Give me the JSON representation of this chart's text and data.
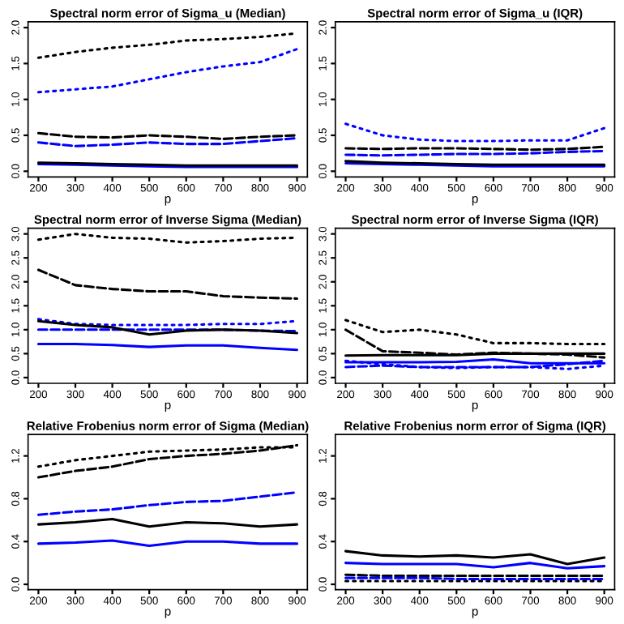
{
  "chart_data": [
    {
      "type": "line",
      "title": "Spectral norm error of Sigma_u (Median)",
      "xlabel": "p",
      "x": [
        200,
        300,
        400,
        500,
        600,
        700,
        800,
        900
      ],
      "xlim": [
        172,
        928
      ],
      "xticks": [
        200,
        300,
        400,
        500,
        600,
        700,
        800,
        900
      ],
      "ylim": [
        -0.08,
        2.08
      ],
      "yticks": [
        {
          "value": 0,
          "label": "0.0"
        },
        0.5,
        {
          "value": 1,
          "label": "1.0"
        },
        1.5,
        {
          "value": 2,
          "label": "2.0"
        }
      ],
      "series": [
        {
          "color": "#000000",
          "line_style": "dotted",
          "values": [
            1.58,
            1.66,
            1.72,
            1.76,
            1.82,
            1.84,
            1.87,
            1.92
          ]
        },
        {
          "color": "#0000ff",
          "line_style": "dotted",
          "values": [
            1.1,
            1.14,
            1.18,
            1.28,
            1.38,
            1.46,
            1.52,
            1.7
          ]
        },
        {
          "color": "#000000",
          "line_style": "dashed",
          "values": [
            0.53,
            0.48,
            0.47,
            0.5,
            0.48,
            0.45,
            0.48,
            0.5
          ]
        },
        {
          "color": "#0000ff",
          "line_style": "dashed",
          "values": [
            0.4,
            0.35,
            0.37,
            0.4,
            0.38,
            0.38,
            0.42,
            0.46
          ]
        },
        {
          "color": "#0000ff",
          "line_style": "solid",
          "values": [
            0.1,
            0.09,
            0.08,
            0.07,
            0.06,
            0.06,
            0.06,
            0.06
          ]
        },
        {
          "color": "#000000",
          "line_style": "solid",
          "values": [
            0.12,
            0.11,
            0.1,
            0.09,
            0.08,
            0.08,
            0.08,
            0.08
          ]
        }
      ]
    },
    {
      "type": "line",
      "title": "Spectral norm error of Sigma_u (IQR)",
      "xlabel": "p",
      "x": [
        200,
        300,
        400,
        500,
        600,
        700,
        800,
        900
      ],
      "xlim": [
        172,
        928
      ],
      "xticks": [
        200,
        300,
        400,
        500,
        600,
        700,
        800,
        900
      ],
      "ylim": [
        -0.08,
        2.08
      ],
      "yticks": [
        {
          "value": 0,
          "label": "0.0"
        },
        0.5,
        {
          "value": 1,
          "label": "1.0"
        },
        1.5,
        {
          "value": 2,
          "label": "2.0"
        }
      ],
      "series": [
        {
          "color": "#0000ff",
          "line_style": "dotted",
          "values": [
            0.66,
            0.5,
            0.44,
            0.42,
            0.42,
            0.43,
            0.43,
            0.6
          ]
        },
        {
          "color": "#000000",
          "line_style": "dashed",
          "values": [
            0.32,
            0.31,
            0.32,
            0.32,
            0.31,
            0.3,
            0.31,
            0.34
          ]
        },
        {
          "color": "#0000ff",
          "line_style": "dashed",
          "values": [
            0.23,
            0.22,
            0.23,
            0.24,
            0.24,
            0.25,
            0.27,
            0.28
          ]
        },
        {
          "color": "#0000ff",
          "line_style": "solid",
          "values": [
            0.11,
            0.1,
            0.09,
            0.08,
            0.07,
            0.07,
            0.07,
            0.07
          ]
        },
        {
          "color": "#000000",
          "line_style": "solid",
          "values": [
            0.14,
            0.12,
            0.11,
            0.1,
            0.09,
            0.09,
            0.09,
            0.09
          ]
        }
      ]
    },
    {
      "type": "line",
      "title": "Spectral norm error of Inverse Sigma (Median)",
      "xlabel": "p",
      "x": [
        200,
        300,
        400,
        500,
        600,
        700,
        800,
        900
      ],
      "xlim": [
        172,
        928
      ],
      "xticks": [
        200,
        300,
        400,
        500,
        600,
        700,
        800,
        900
      ],
      "ylim": [
        -0.12,
        3.12
      ],
      "yticks": [
        {
          "value": 0,
          "label": "0.0"
        },
        0.5,
        {
          "value": 1,
          "label": "1.0"
        },
        1.5,
        {
          "value": 2,
          "label": "2.0"
        },
        2.5,
        {
          "value": 3,
          "label": "3.0"
        }
      ],
      "series": [
        {
          "color": "#000000",
          "line_style": "dotted",
          "values": [
            2.88,
            3.0,
            2.92,
            2.9,
            2.82,
            2.85,
            2.9,
            2.92
          ]
        },
        {
          "color": "#0000ff",
          "line_style": "dotted",
          "values": [
            1.22,
            1.12,
            1.1,
            1.1,
            1.1,
            1.12,
            1.12,
            1.18
          ]
        },
        {
          "color": "#000000",
          "line_style": "dashed",
          "values": [
            2.25,
            1.93,
            1.85,
            1.8,
            1.8,
            1.7,
            1.67,
            1.65
          ]
        },
        {
          "color": "#0000ff",
          "line_style": "dashed",
          "values": [
            1.0,
            1.0,
            1.0,
            1.0,
            1.0,
            1.0,
            0.98,
            0.97
          ]
        },
        {
          "color": "#000000",
          "line_style": "solid",
          "values": [
            1.18,
            1.1,
            1.05,
            0.9,
            0.98,
            1.0,
            0.98,
            0.93
          ]
        },
        {
          "color": "#0000ff",
          "line_style": "solid",
          "values": [
            0.7,
            0.7,
            0.68,
            0.64,
            0.67,
            0.67,
            0.62,
            0.58
          ]
        }
      ]
    },
    {
      "type": "line",
      "title": "Spectral norm error of Inverse Sigma (IQR)",
      "xlabel": "p",
      "x": [
        200,
        300,
        400,
        500,
        600,
        700,
        800,
        900
      ],
      "xlim": [
        172,
        928
      ],
      "xticks": [
        200,
        300,
        400,
        500,
        600,
        700,
        800,
        900
      ],
      "ylim": [
        -0.12,
        3.12
      ],
      "yticks": [
        {
          "value": 0,
          "label": "0.0"
        },
        0.5,
        {
          "value": 1,
          "label": "1.0"
        },
        1.5,
        {
          "value": 2,
          "label": "2.0"
        },
        2.5,
        {
          "value": 3,
          "label": "3.0"
        }
      ],
      "series": [
        {
          "color": "#000000",
          "line_style": "dotted",
          "values": [
            1.2,
            0.95,
            1.0,
            0.9,
            0.72,
            0.72,
            0.7,
            0.7
          ]
        },
        {
          "color": "#0000ff",
          "line_style": "dotted",
          "values": [
            0.35,
            0.28,
            0.22,
            0.2,
            0.22,
            0.22,
            0.18,
            0.25
          ]
        },
        {
          "color": "#000000",
          "line_style": "dashed",
          "values": [
            1.0,
            0.55,
            0.52,
            0.48,
            0.52,
            0.5,
            0.48,
            0.42
          ]
        },
        {
          "color": "#0000ff",
          "line_style": "dashed",
          "values": [
            0.22,
            0.25,
            0.22,
            0.22,
            0.22,
            0.22,
            0.28,
            0.35
          ]
        },
        {
          "color": "#000000",
          "line_style": "solid",
          "values": [
            0.46,
            0.47,
            0.47,
            0.47,
            0.5,
            0.5,
            0.5,
            0.5
          ]
        },
        {
          "color": "#0000ff",
          "line_style": "solid",
          "values": [
            0.32,
            0.32,
            0.32,
            0.33,
            0.38,
            0.3,
            0.3,
            0.3
          ]
        }
      ]
    },
    {
      "type": "line",
      "title": "Relative Frobenius norm error of Sigma (Median)",
      "xlabel": "p",
      "x": [
        200,
        300,
        400,
        500,
        600,
        700,
        800,
        900
      ],
      "xlim": [
        172,
        928
      ],
      "xticks": [
        200,
        300,
        400,
        500,
        600,
        700,
        800,
        900
      ],
      "ylim": [
        -0.05,
        1.4
      ],
      "yticks": [
        {
          "value": 0,
          "label": "0.0"
        },
        0.4,
        0.8,
        1.2
      ],
      "series": [
        {
          "color": "#000000",
          "line_style": "dotted",
          "values": [
            1.1,
            1.16,
            1.2,
            1.24,
            1.25,
            1.26,
            1.28,
            1.28
          ]
        },
        {
          "color": "#000000",
          "line_style": "dashed",
          "values": [
            1.0,
            1.06,
            1.1,
            1.17,
            1.2,
            1.22,
            1.25,
            1.3
          ]
        },
        {
          "color": "#0000ff",
          "line_style": "dashed",
          "values": [
            0.65,
            0.68,
            0.7,
            0.74,
            0.77,
            0.78,
            0.82,
            0.86
          ]
        },
        {
          "color": "#000000",
          "line_style": "solid",
          "values": [
            0.56,
            0.58,
            0.61,
            0.54,
            0.58,
            0.57,
            0.54,
            0.56
          ]
        },
        {
          "color": "#0000ff",
          "line_style": "solid",
          "values": [
            0.38,
            0.39,
            0.41,
            0.36,
            0.4,
            0.4,
            0.38,
            0.38
          ]
        }
      ]
    },
    {
      "type": "line",
      "title": "Relative Frobenius norm error of Sigma (IQR)",
      "xlabel": "p",
      "x": [
        200,
        300,
        400,
        500,
        600,
        700,
        800,
        900
      ],
      "xlim": [
        172,
        928
      ],
      "xticks": [
        200,
        300,
        400,
        500,
        600,
        700,
        800,
        900
      ],
      "ylim": [
        -0.05,
        1.4
      ],
      "yticks": [
        {
          "value": 0,
          "label": "0.0"
        },
        0.4,
        0.8,
        1.2
      ],
      "series": [
        {
          "color": "#000000",
          "line_style": "dotted",
          "values": [
            0.03,
            0.03,
            0.03,
            0.03,
            0.03,
            0.03,
            0.03,
            0.03
          ]
        },
        {
          "color": "#000000",
          "line_style": "dashed",
          "values": [
            0.09,
            0.08,
            0.08,
            0.08,
            0.08,
            0.08,
            0.08,
            0.08
          ]
        },
        {
          "color": "#0000ff",
          "line_style": "dashed",
          "values": [
            0.06,
            0.06,
            0.06,
            0.05,
            0.05,
            0.05,
            0.05,
            0.05
          ]
        },
        {
          "color": "#000000",
          "line_style": "solid",
          "values": [
            0.31,
            0.27,
            0.26,
            0.27,
            0.25,
            0.28,
            0.19,
            0.25
          ]
        },
        {
          "color": "#0000ff",
          "line_style": "solid",
          "values": [
            0.2,
            0.19,
            0.19,
            0.19,
            0.16,
            0.2,
            0.15,
            0.17
          ]
        }
      ]
    }
  ]
}
